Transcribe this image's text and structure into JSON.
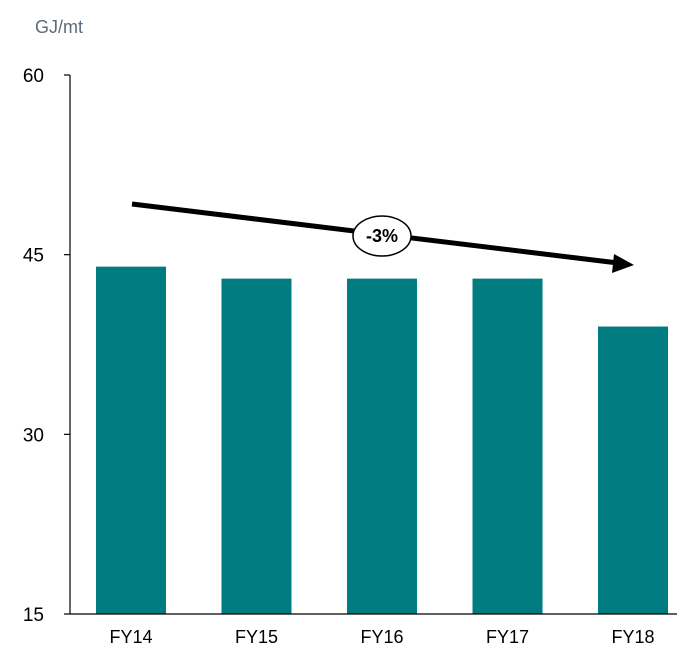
{
  "chart_data": {
    "type": "bar",
    "unit_label": "GJ/mt",
    "categories": [
      "FY14",
      "FY15",
      "FY16",
      "FY17",
      "FY18"
    ],
    "values": [
      44,
      43,
      43,
      43,
      39
    ],
    "ylim": [
      15,
      60
    ],
    "yticks": [
      "15",
      "30",
      "45",
      "60"
    ],
    "grid": false,
    "bar_color": "#007b7f",
    "trend_annotation": "-3%"
  }
}
